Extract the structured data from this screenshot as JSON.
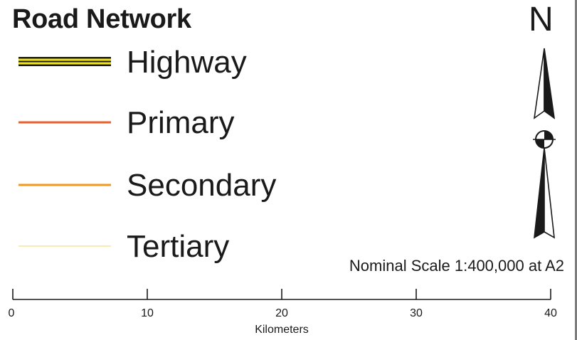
{
  "legend": {
    "title": "Road Network",
    "items": [
      {
        "label": "Highway",
        "style": "highway",
        "colors": {
          "casing": "#1a1a1a",
          "fill": "#f5e61c"
        }
      },
      {
        "label": "Primary",
        "style": "line",
        "colors": {
          "line": "#e8602c"
        }
      },
      {
        "label": "Secondary",
        "style": "line",
        "colors": {
          "line": "#ef9a1c"
        }
      },
      {
        "label": "Tertiary",
        "style": "line",
        "colors": {
          "line": "#f8ebb4"
        }
      }
    ]
  },
  "north_arrow": {
    "letter": "N",
    "icon": "north-arrow-icon"
  },
  "scale": {
    "nominal": "Nominal Scale 1:400,000 at A2",
    "unit": "Kilometers",
    "ticks": [
      "0",
      "10",
      "20",
      "30",
      "40"
    ]
  }
}
